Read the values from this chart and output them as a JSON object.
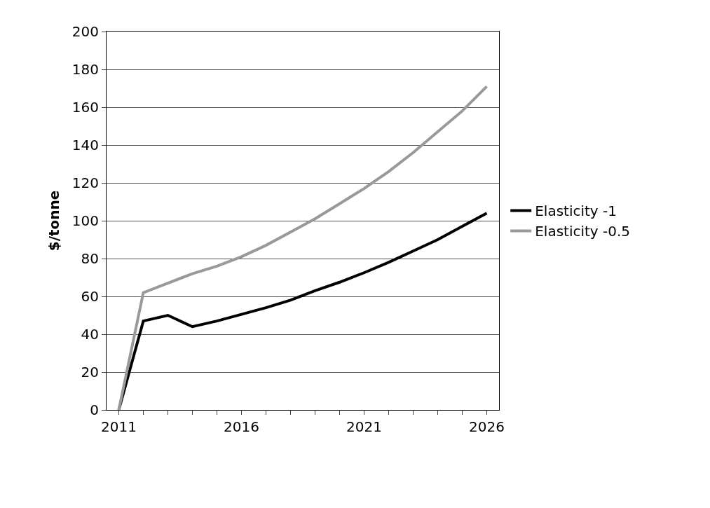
{
  "chart_data": {
    "type": "line",
    "ylabel": "$/tonne",
    "x": [
      2011,
      2012,
      2013,
      2014,
      2015,
      2016,
      2017,
      2018,
      2019,
      2020,
      2021,
      2022,
      2023,
      2024,
      2025,
      2026
    ],
    "series": [
      {
        "name": "Elasticity -1",
        "color": "#000000",
        "values": [
          0,
          47,
          50,
          44,
          47,
          50.5,
          54,
          58,
          63,
          67.5,
          72.5,
          78,
          84,
          90,
          97,
          104
        ]
      },
      {
        "name": "Elasticity -0.5",
        "color": "#999999",
        "values": [
          0,
          62,
          67,
          72,
          76,
          81,
          87,
          94,
          101,
          109,
          117,
          126,
          136,
          147,
          158,
          171
        ]
      }
    ],
    "xlim": [
      2010.5,
      2026.5
    ],
    "xticks": [
      2011,
      {
        "value": 2012,
        "label": null
      },
      {
        "value": 2013,
        "label": null
      },
      {
        "value": 2014,
        "label": null
      },
      {
        "value": 2015,
        "label": null
      },
      2016,
      {
        "value": 2017,
        "label": null
      },
      {
        "value": 2018,
        "label": null
      },
      {
        "value": 2019,
        "label": null
      },
      {
        "value": 2020,
        "label": null
      },
      2021,
      {
        "value": 2022,
        "label": null
      },
      {
        "value": 2023,
        "label": null
      },
      {
        "value": 2024,
        "label": null
      },
      {
        "value": 2025,
        "label": null
      },
      2026
    ],
    "ylim": [
      0,
      200
    ],
    "yticks": [
      0,
      20,
      40,
      60,
      80,
      100,
      120,
      140,
      160,
      180,
      200
    ],
    "grid": "y",
    "legend": "right",
    "marker": "none",
    "line_style": "solid"
  }
}
